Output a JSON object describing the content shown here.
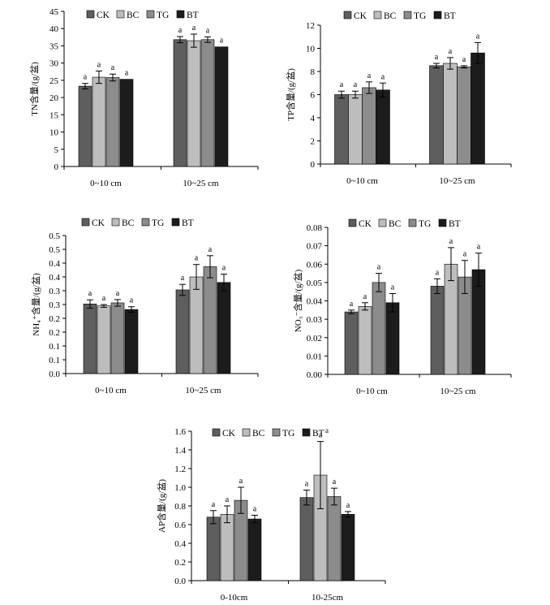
{
  "legend_labels": [
    "CK",
    "BC",
    "TG",
    "BT"
  ],
  "colors": {
    "CK": "#5e5e5e",
    "BC": "#bdbdbd",
    "TG": "#8c8c8c",
    "BT": "#1c1c1c"
  },
  "chart_data": [
    {
      "type": "bar",
      "ylabel": "TN含量/(g/盆)",
      "categories": [
        "0~10 cm",
        "10~25 cm"
      ],
      "ylim": [
        0,
        45
      ],
      "yticks": [
        "0",
        "5",
        "10",
        "15",
        "20",
        "25",
        "30",
        "35",
        "40",
        "45"
      ],
      "series": [
        {
          "name": "CK",
          "values": [
            23.3,
            36.8
          ],
          "errors": [
            0.8,
            0.9
          ]
        },
        {
          "name": "BC",
          "values": [
            25.9,
            36.5
          ],
          "errors": [
            1.8,
            1.9
          ]
        },
        {
          "name": "TG",
          "values": [
            25.8,
            36.8
          ],
          "errors": [
            1.0,
            0.8
          ]
        },
        {
          "name": "BT",
          "values": [
            25.3,
            34.7
          ],
          "errors": [
            0,
            0
          ]
        }
      ],
      "annotations": [
        [
          "a",
          "a",
          "a",
          "a"
        ],
        [
          "a",
          "a",
          "a",
          "a"
        ]
      ]
    },
    {
      "type": "bar",
      "ylabel": "TP含量/(g/盆)",
      "categories": [
        "0~10 cm",
        "10~25 cm"
      ],
      "ylim": [
        0,
        12
      ],
      "yticks": [
        "0",
        "2",
        "4",
        "6",
        "8",
        "10",
        "12"
      ],
      "series": [
        {
          "name": "CK",
          "values": [
            6.0,
            8.5
          ],
          "errors": [
            0.3,
            0.2
          ]
        },
        {
          "name": "BC",
          "values": [
            6.0,
            8.7
          ],
          "errors": [
            0.3,
            0.5
          ]
        },
        {
          "name": "TG",
          "values": [
            6.6,
            8.4
          ],
          "errors": [
            0.5,
            0.1
          ]
        },
        {
          "name": "BT",
          "values": [
            6.4,
            9.6
          ],
          "errors": [
            0.6,
            0.9
          ]
        }
      ],
      "annotations": [
        [
          "a",
          "a",
          "a",
          "a"
        ],
        [
          "a",
          "a",
          "a",
          "a"
        ]
      ]
    },
    {
      "type": "bar",
      "ylabel": "NH₄⁺含量/(g/盆)",
      "categories": [
        "0~10 cm",
        "10~25 cm"
      ],
      "ylim": [
        0,
        0.5
      ],
      "yticks": [
        "0.0",
        "0.1",
        "0.1",
        "0.2",
        "0.2",
        "0.3",
        "0.3",
        "0.4",
        "0.4",
        "0.5",
        "0.5"
      ],
      "series": [
        {
          "name": "CK",
          "values": [
            0.252,
            0.303
          ],
          "errors": [
            0.015,
            0.02
          ]
        },
        {
          "name": "BC",
          "values": [
            0.245,
            0.35
          ],
          "errors": [
            0.005,
            0.045
          ]
        },
        {
          "name": "TG",
          "values": [
            0.256,
            0.387
          ],
          "errors": [
            0.012,
            0.04
          ]
        },
        {
          "name": "BT",
          "values": [
            0.232,
            0.33
          ],
          "errors": [
            0.01,
            0.03
          ]
        }
      ],
      "annotations": [
        [
          "a",
          "a",
          "a",
          "a"
        ],
        [
          "a",
          "a",
          "a",
          "a"
        ]
      ]
    },
    {
      "type": "bar",
      "ylabel": "NO₃⁻含量/(g/盆)",
      "categories": [
        "0~10 cm",
        "10~25 cm"
      ],
      "ylim": [
        0,
        0.08
      ],
      "yticks": [
        "0.00",
        "0.01",
        "0.02",
        "0.03",
        "0.04",
        "0.05",
        "0.06",
        "0.07",
        "0.08"
      ],
      "series": [
        {
          "name": "CK",
          "values": [
            0.034,
            0.048
          ],
          "errors": [
            0.001,
            0.004
          ]
        },
        {
          "name": "BC",
          "values": [
            0.037,
            0.06
          ],
          "errors": [
            0.002,
            0.009
          ]
        },
        {
          "name": "TG",
          "values": [
            0.05,
            0.053
          ],
          "errors": [
            0.005,
            0.009
          ]
        },
        {
          "name": "BT",
          "values": [
            0.039,
            0.057
          ],
          "errors": [
            0.005,
            0.009
          ]
        }
      ],
      "annotations": [
        [
          "a",
          "a",
          "a",
          "a"
        ],
        [
          "a",
          "a",
          "a",
          "a"
        ]
      ]
    },
    {
      "type": "bar",
      "ylabel": "AP含量/(g/盆)",
      "categories": [
        "0-10cm",
        "10-25cm"
      ],
      "ylim": [
        0,
        1.6
      ],
      "yticks": [
        "0.0",
        "0.2",
        "0.4",
        "0.6",
        "0.8",
        "1.0",
        "1.2",
        "1.4",
        "1.6"
      ],
      "series": [
        {
          "name": "CK",
          "values": [
            0.68,
            0.89
          ],
          "errors": [
            0.07,
            0.08
          ]
        },
        {
          "name": "BC",
          "values": [
            0.71,
            1.13
          ],
          "errors": [
            0.09,
            0.36
          ]
        },
        {
          "name": "TG",
          "values": [
            0.86,
            0.9
          ],
          "errors": [
            0.14,
            0.09
          ]
        },
        {
          "name": "BT",
          "values": [
            0.66,
            0.71
          ],
          "errors": [
            0.04,
            0.03
          ]
        }
      ],
      "annotations": [
        [
          "a",
          "a",
          "a",
          "a"
        ],
        [
          "a",
          "a",
          "a",
          "a"
        ]
      ],
      "legend_suffix": "a"
    }
  ]
}
